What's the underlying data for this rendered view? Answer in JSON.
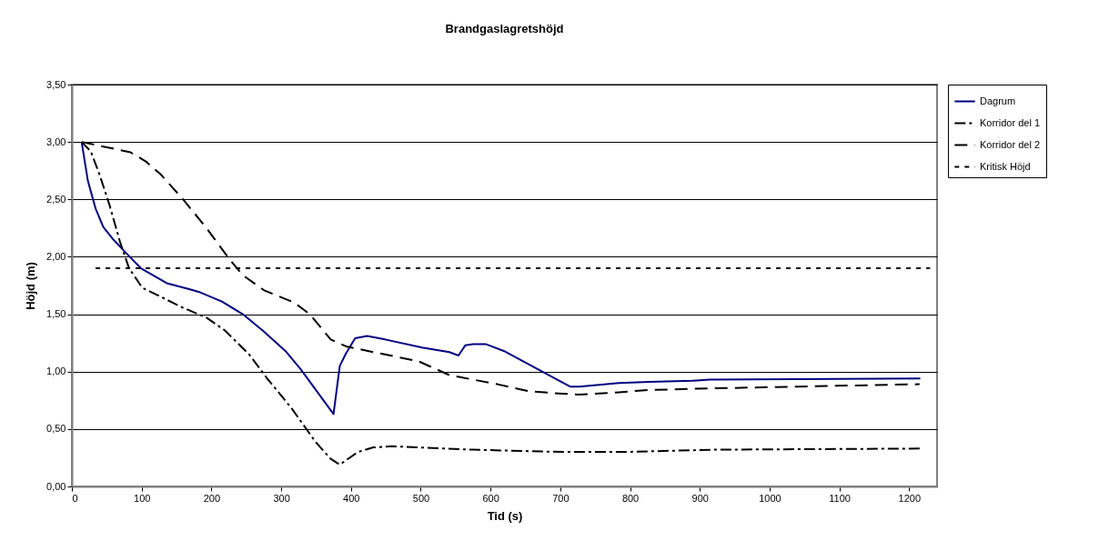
{
  "chart_data": {
    "type": "line",
    "title": "Brandgaslagretshöjd",
    "xlabel": "Tid (s)",
    "ylabel": "Höjd (m)",
    "xlim": [
      0,
      1240
    ],
    "xticks": [
      0,
      100,
      200,
      300,
      400,
      500,
      600,
      700,
      800,
      900,
      1000,
      1100,
      1200
    ],
    "ylim": [
      0,
      3.5
    ],
    "yticks": [
      {
        "value": 0,
        "label": "0,00"
      },
      {
        "value": 0.5,
        "label": "0,50"
      },
      {
        "value": 1,
        "label": "1,00"
      },
      {
        "value": 1.5,
        "label": "1,50"
      },
      {
        "value": 2,
        "label": "2,00"
      },
      {
        "value": 2.5,
        "label": "2,50"
      },
      {
        "value": 3,
        "label": "3,00"
      },
      {
        "value": 3.5,
        "label": "3,50"
      }
    ],
    "grid": "y",
    "legend": "right",
    "marker": "none",
    "series": [
      {
        "name": "Dagrum",
        "color": "#000080",
        "line_style": "solid",
        "x": [
          14,
          23,
          34,
          45,
          58,
          75,
          99,
          136,
          167,
          184,
          215,
          245,
          275,
          306,
          328,
          375,
          384,
          393,
          406,
          423,
          449,
          502,
          541,
          554,
          564,
          575,
          593,
          619,
          671,
          714,
          727,
          784,
          827,
          889,
          914,
          1216
        ],
        "values": [
          3.0,
          2.66,
          2.42,
          2.26,
          2.16,
          2.05,
          1.9,
          1.77,
          1.72,
          1.69,
          1.61,
          1.5,
          1.35,
          1.18,
          1.02,
          0.63,
          1.05,
          1.16,
          1.29,
          1.31,
          1.28,
          1.21,
          1.17,
          1.14,
          1.23,
          1.24,
          1.24,
          1.18,
          1.01,
          0.87,
          0.87,
          0.9,
          0.91,
          0.92,
          0.93,
          0.94
        ]
      },
      {
        "name": "Korridor del 1",
        "color": "#000000",
        "line_style": "dashdot",
        "x": [
          14,
          27,
          40,
          54,
          69,
          82,
          101,
          118,
          158,
          193,
          219,
          254,
          280,
          315,
          349,
          371,
          384,
          410,
          432,
          458,
          497,
          574,
          704,
          791,
          921,
          1215
        ],
        "values": [
          3.0,
          2.92,
          2.71,
          2.45,
          2.13,
          1.9,
          1.73,
          1.68,
          1.56,
          1.47,
          1.36,
          1.15,
          0.94,
          0.68,
          0.39,
          0.24,
          0.19,
          0.3,
          0.34,
          0.35,
          0.34,
          0.32,
          0.3,
          0.3,
          0.32,
          0.33
        ]
      },
      {
        "name": "Korridor del 2",
        "color": "#000000",
        "line_style": "dashed",
        "x": [
          14,
          84,
          106,
          127,
          158,
          193,
          227,
          245,
          275,
          319,
          341,
          371,
          393,
          432,
          497,
          541,
          610,
          654,
          697,
          727,
          784,
          827,
          889,
          1041,
          1215
        ],
        "values": [
          3.0,
          2.91,
          2.83,
          2.72,
          2.51,
          2.25,
          1.97,
          1.84,
          1.71,
          1.6,
          1.5,
          1.28,
          1.22,
          1.17,
          1.09,
          0.97,
          0.89,
          0.83,
          0.81,
          0.8,
          0.82,
          0.84,
          0.85,
          0.87,
          0.89
        ]
      },
      {
        "name": "Kritisk Höjd",
        "color": "#000000",
        "line_style": "dotted",
        "x": [
          34,
          1230
        ],
        "values": [
          1.9,
          1.9
        ]
      }
    ]
  }
}
